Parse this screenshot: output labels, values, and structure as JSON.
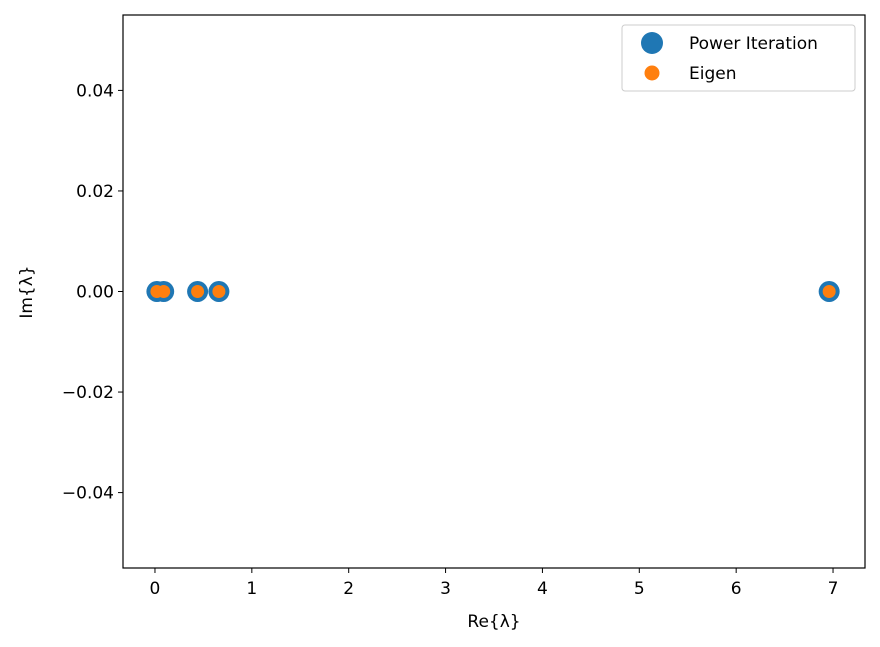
{
  "chart_data": {
    "type": "scatter",
    "title": "",
    "xlabel": "Re{λ}",
    "ylabel": "Im{λ}",
    "xlim": [
      -0.33,
      7.33
    ],
    "ylim": [
      -0.055,
      0.055
    ],
    "xticks": [
      0,
      1,
      2,
      3,
      4,
      5,
      6,
      7
    ],
    "xtick_labels": [
      "0",
      "1",
      "2",
      "3",
      "4",
      "5",
      "6",
      "7"
    ],
    "yticks": [
      -0.04,
      -0.02,
      0.0,
      0.02,
      0.04
    ],
    "ytick_labels": [
      "−0.04",
      "−0.02",
      "0.00",
      "0.02",
      "0.04"
    ],
    "grid": false,
    "legend_position": "top-right",
    "series": [
      {
        "name": "Power Iteration",
        "color": "#1f77b4",
        "marker": "large-circle",
        "points": [
          [
            0.02,
            0.0
          ],
          [
            0.09,
            0.0
          ],
          [
            0.44,
            0.0
          ],
          [
            0.66,
            0.0
          ],
          [
            6.96,
            0.0
          ]
        ]
      },
      {
        "name": "Eigen",
        "color": "#ff7f0e",
        "marker": "small-circle",
        "points": [
          [
            0.02,
            0.0
          ],
          [
            0.09,
            0.0
          ],
          [
            0.44,
            0.0
          ],
          [
            0.66,
            0.0
          ],
          [
            6.96,
            0.0
          ]
        ]
      }
    ]
  }
}
